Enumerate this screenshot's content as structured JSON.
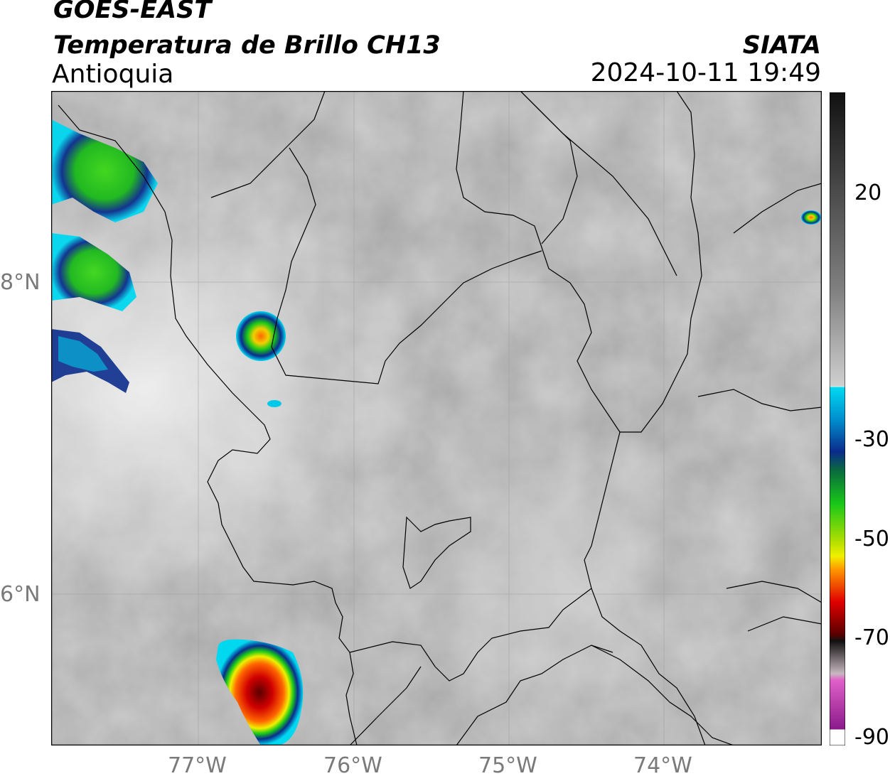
{
  "header": {
    "satellite": "GOES-EAST",
    "product": "Temperatura de Brillo CH13",
    "region": "Antioquia",
    "organization": "SIATA",
    "timestamp": "2024-10-11 19:49"
  },
  "axes": {
    "lon_labels": [
      "77°W",
      "76°W",
      "75°W",
      "74°W"
    ],
    "lat_labels": [
      "8°N",
      "6°N"
    ]
  },
  "colorbar": {
    "ticks": [
      "20",
      "-30",
      "-50",
      "-70",
      "-90"
    ],
    "colors": {
      "warm_dark": "#111111",
      "mid_gray": "#7f7f7f",
      "light": "#f2f2f2",
      "cyan": "#00d8f0",
      "blue": "#0a2c8c",
      "green": "#19c819",
      "yellow": "#f0f000",
      "orange": "#ff9900",
      "red": "#e00000",
      "dark_red": "#5a0000",
      "pink": "#e060c8",
      "purple": "#8a1a8a"
    }
  },
  "features": {
    "cloud_cells": [
      "storm-northwest-coast",
      "storm-uraba",
      "storm-southwest-choco",
      "storm-northeast-small"
    ]
  }
}
